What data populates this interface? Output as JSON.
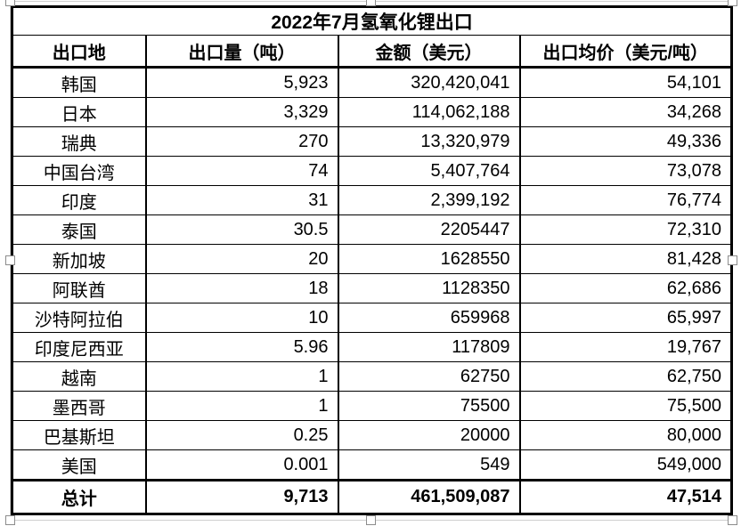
{
  "chart_data": {
    "type": "table",
    "title": "2022年7月氢氧化锂出口",
    "columns": [
      "出口地",
      "出口量（吨）",
      "金额（美元）",
      "出口均价（美元/吨）"
    ],
    "rows": [
      [
        "韩国",
        "5,923",
        "320,420,041",
        "54,101"
      ],
      [
        "日本",
        "3,329",
        "114,062,188",
        "34,268"
      ],
      [
        "瑞典",
        "270",
        "13,320,979",
        "49,336"
      ],
      [
        "中国台湾",
        "74",
        "5,407,764",
        "73,078"
      ],
      [
        "印度",
        "31",
        "2,399,192",
        "76,774"
      ],
      [
        "泰国",
        "30.5",
        "2205447",
        "72,310"
      ],
      [
        "新加坡",
        "20",
        "1628550",
        "81,428"
      ],
      [
        "阿联酋",
        "18",
        "1128350",
        "62,686"
      ],
      [
        "沙特阿拉伯",
        "10",
        "659968",
        "65,997"
      ],
      [
        "印度尼西亚",
        "5.96",
        "117809",
        "19,767"
      ],
      [
        "越南",
        "1",
        "62750",
        "62,750"
      ],
      [
        "墨西哥",
        "1",
        "75500",
        "75,500"
      ],
      [
        "巴基斯坦",
        "0.25",
        "20000",
        "80,000"
      ],
      [
        "美国",
        "0.001",
        "549",
        "549,000"
      ]
    ],
    "total_row": [
      "总计",
      "9,713",
      "461,509,087",
      "47,514"
    ]
  },
  "selection": {
    "handle_fill": "#ffffff",
    "handle_border": "#8c8c8c",
    "frame_color": "#cfcfcf"
  },
  "colors": {
    "table_border": "#000000",
    "text": "#000000",
    "background": "#ffffff"
  }
}
